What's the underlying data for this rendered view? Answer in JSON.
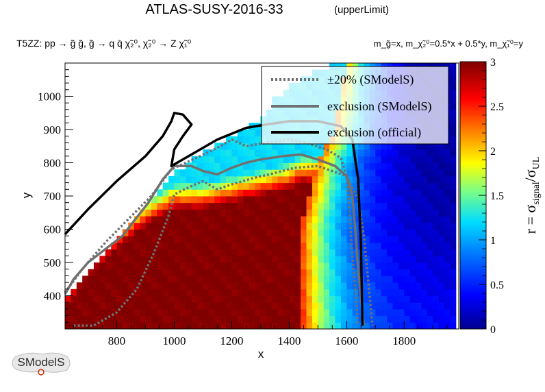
{
  "header": {
    "title": "ATLAS-SUSY-2016-33",
    "subtitle": "(upperLimit)",
    "process": "T5ZZ: pp → g̃ g̃, g̃ → q q̄ χ̃₂⁰, χ̃₂⁰ → Z χ̃₁⁰",
    "mass_relation": "m_g̃=x, m_χ̃₂⁰=0.5*x + 0.5*y, m_χ̃₁⁰=y"
  },
  "logo": {
    "text": "SModelS"
  },
  "colors": {
    "official": "#000000",
    "smodels_line": "#707070",
    "smodels_band": "#707070",
    "legend_bg": "#ffffff"
  },
  "chart_data": {
    "type": "heatmap",
    "xlabel": "x",
    "ylabel": "y",
    "xlim": [
      620,
      1990
    ],
    "ylim": [
      300,
      1100
    ],
    "xticks": [
      800,
      1000,
      1200,
      1400,
      1600,
      1800
    ],
    "yticks": [
      400,
      500,
      600,
      700,
      800,
      900,
      1000
    ],
    "zlabel": "r = σsignal/σUL",
    "zlim": [
      0,
      3
    ],
    "zticks": [
      0,
      0.5,
      1,
      1.5,
      2,
      2.5,
      3
    ],
    "colormap": "jet-like, dark blue (0) to dark red (3)",
    "legend": {
      "placement": "top-right",
      "entries": [
        {
          "label": "±20% (SModelS)",
          "style": "dotted-gray"
        },
        {
          "label": "exclusion (SModelS)",
          "style": "solid-gray"
        },
        {
          "label": "exclusion (official)",
          "style": "solid-black"
        }
      ]
    },
    "series": [
      {
        "name": "exclusion (official)",
        "points": [
          [
            620,
            585
          ],
          [
            700,
            660
          ],
          [
            800,
            745
          ],
          [
            900,
            820
          ],
          [
            960,
            880
          ],
          [
            990,
            925
          ],
          [
            1000,
            950
          ],
          [
            1030,
            945
          ],
          [
            1060,
            915
          ],
          [
            1030,
            880
          ],
          [
            1000,
            840
          ],
          [
            990,
            790
          ],
          [
            1060,
            825
          ],
          [
            1150,
            870
          ],
          [
            1250,
            905
          ],
          [
            1320,
            915
          ],
          [
            1400,
            925
          ],
          [
            1500,
            925
          ],
          [
            1580,
            910
          ],
          [
            1620,
            870
          ],
          [
            1640,
            750
          ],
          [
            1650,
            550
          ],
          [
            1655,
            310
          ]
        ]
      },
      {
        "name": "exclusion (SModelS)",
        "points": [
          [
            620,
            405
          ],
          [
            650,
            450
          ],
          [
            700,
            500
          ],
          [
            760,
            540
          ],
          [
            820,
            580
          ],
          [
            860,
            625
          ],
          [
            910,
            680
          ],
          [
            960,
            750
          ],
          [
            1000,
            790
          ],
          [
            1060,
            790
          ],
          [
            1100,
            775
          ],
          [
            1150,
            765
          ],
          [
            1200,
            785
          ],
          [
            1250,
            800
          ],
          [
            1300,
            810
          ],
          [
            1380,
            820
          ],
          [
            1440,
            825
          ],
          [
            1500,
            810
          ],
          [
            1560,
            790
          ],
          [
            1600,
            760
          ],
          [
            1620,
            700
          ],
          [
            1630,
            600
          ],
          [
            1640,
            480
          ],
          [
            1660,
            310
          ]
        ]
      },
      {
        "name": "±20% (SModelS) upper",
        "points": [
          [
            620,
            410
          ],
          [
            680,
            480
          ],
          [
            760,
            560
          ],
          [
            840,
            630
          ],
          [
            920,
            700
          ],
          [
            990,
            780
          ],
          [
            1040,
            800
          ],
          [
            1090,
            820
          ],
          [
            1150,
            845
          ],
          [
            1200,
            870
          ],
          [
            1250,
            850
          ],
          [
            1320,
            860
          ],
          [
            1400,
            870
          ],
          [
            1460,
            860
          ],
          [
            1530,
            840
          ],
          [
            1580,
            815
          ],
          [
            1600,
            760
          ],
          [
            1610,
            650
          ],
          [
            1620,
            520
          ],
          [
            1630,
            420
          ],
          [
            1640,
            310
          ]
        ]
      },
      {
        "name": "±20% (SModelS) lower",
        "points": [
          [
            650,
            310
          ],
          [
            720,
            310
          ],
          [
            800,
            350
          ],
          [
            870,
            420
          ],
          [
            930,
            530
          ],
          [
            980,
            640
          ],
          [
            1000,
            705
          ],
          [
            1060,
            730
          ],
          [
            1100,
            745
          ],
          [
            1150,
            720
          ],
          [
            1200,
            735
          ],
          [
            1280,
            755
          ],
          [
            1330,
            765
          ],
          [
            1420,
            785
          ],
          [
            1500,
            790
          ],
          [
            1600,
            760
          ],
          [
            1640,
            690
          ],
          [
            1660,
            580
          ],
          [
            1680,
            400
          ],
          [
            1690,
            310
          ]
        ]
      }
    ]
  }
}
